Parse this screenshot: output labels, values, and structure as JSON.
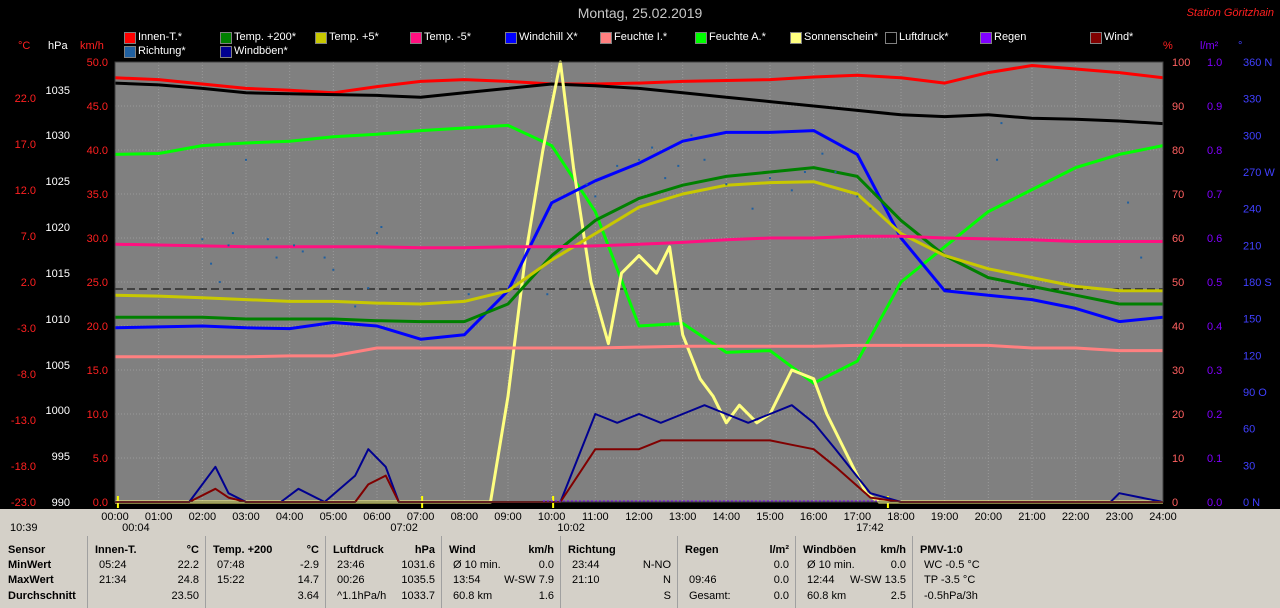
{
  "title": "Montag, 25.02.2019",
  "station": "Station Göritzhain",
  "legend": [
    {
      "label": "Innen-T.*",
      "color": "#ff0000"
    },
    {
      "label": "Temp. +200*",
      "color": "#008000"
    },
    {
      "label": "Temp. +5*",
      "color": "#c8c800"
    },
    {
      "label": "Temp. -5*",
      "color": "#ff1080"
    },
    {
      "label": "Windchill X*",
      "color": "#0000ff"
    },
    {
      "label": "Feuchte I.*",
      "color": "#ff8080"
    },
    {
      "label": "Feuchte A.*",
      "color": "#00ff00"
    },
    {
      "label": "Sonnenschein*",
      "color": "#ffff80"
    },
    {
      "label": "Luftdruck*",
      "color": "#000000"
    },
    {
      "label": "Regen",
      "color": "#8000ff"
    },
    {
      "label": "Wind*",
      "color": "#800000"
    },
    {
      "label": "Richtung*",
      "color": "#2060a0"
    },
    {
      "label": "Windböen*",
      "color": "#000090"
    }
  ],
  "axes": {
    "units": {
      "temp": "°C",
      "hpa": "hPa",
      "kmh": "km/h",
      "pct": "%",
      "rain": "l/m²",
      "dir": "°"
    },
    "temp_ticks": [
      "22.0",
      "17.0",
      "12.0",
      "7.0",
      "2.0",
      "-3.0",
      "-8.0",
      "-13.0",
      "-18.0",
      "-23.0"
    ],
    "hpa_ticks": [
      "1035",
      "1030",
      "1025",
      "1020",
      "1015",
      "1010",
      "1005",
      "1000",
      "995",
      "990"
    ],
    "kmh_ticks": [
      "50.0",
      "45.0",
      "40.0",
      "35.0",
      "30.0",
      "25.0",
      "20.0",
      "15.0",
      "10.0",
      "5.0",
      "0.0"
    ],
    "pct_ticks": [
      "100",
      "90",
      "80",
      "70",
      "60",
      "50",
      "40",
      "30",
      "20",
      "10",
      "0"
    ],
    "rain_ticks": [
      "1.0",
      "0.9",
      "0.8",
      "0.7",
      "0.6",
      "0.5",
      "0.4",
      "0.3",
      "0.2",
      "0.1",
      "0.0"
    ],
    "dir_ticks": [
      "360 N",
      "330",
      "300",
      "270 W",
      "240",
      "210",
      "180 S",
      "150",
      "120",
      "90 O",
      "60",
      "30",
      "0 N"
    ],
    "time_ticks": [
      "00:00",
      "01:00",
      "02:00",
      "03:00",
      "04:00",
      "05:00",
      "06:00",
      "07:00",
      "08:00",
      "09:00",
      "10:00",
      "11:00",
      "12:00",
      "13:00",
      "14:00",
      "15:00",
      "16:00",
      "17:00",
      "18:00",
      "19:00",
      "20:00",
      "21:00",
      "22:00",
      "23:00",
      "24:00"
    ]
  },
  "markers": {
    "now": "10:39",
    "moonrise": "00:04",
    "sunrise": "07:02",
    "moonset": "10:02",
    "sunset": "17:42"
  },
  "chart_data": {
    "type": "line",
    "title": "Montag, 25.02.2019",
    "x_unit": "hours",
    "xlim": [
      0,
      24
    ],
    "ylim_kmh": [
      0,
      50
    ],
    "series": [
      {
        "name": "Innen-T.*",
        "axis": "kmh",
        "color": "#ff0000",
        "x": [
          0,
          1,
          2,
          3,
          4,
          5,
          6,
          7,
          8,
          9,
          10,
          11,
          12,
          13,
          14,
          15,
          16,
          17,
          18,
          19,
          20,
          21,
          22,
          23,
          24
        ],
        "y": [
          48.2,
          48.0,
          47.5,
          47.0,
          46.8,
          46.5,
          47.2,
          47.8,
          48.0,
          47.8,
          47.5,
          47.5,
          47.6,
          47.8,
          47.9,
          48.0,
          48.3,
          48.5,
          48.2,
          47.6,
          48.8,
          49.6,
          49.2,
          48.8,
          48.2
        ]
      },
      {
        "name": "Luftdruck*",
        "axis": "kmh",
        "color": "#000000",
        "x": [
          0,
          1,
          2,
          3,
          4,
          5,
          6,
          7,
          8,
          9,
          10,
          11,
          12,
          13,
          14,
          15,
          16,
          17,
          18,
          19,
          20,
          21,
          22,
          23,
          24
        ],
        "y": [
          47.6,
          47.4,
          47.0,
          46.5,
          46.4,
          46.3,
          46.2,
          46.0,
          46.5,
          47.0,
          47.5,
          47.3,
          47.0,
          46.5,
          46.0,
          45.5,
          45.0,
          44.5,
          44.0,
          43.8,
          44.0,
          43.6,
          43.5,
          43.3,
          43.0
        ]
      },
      {
        "name": "Feuchte A.*",
        "axis": "kmh",
        "color": "#00ff00",
        "x": [
          0,
          1,
          2,
          3,
          4,
          5,
          6,
          7,
          8,
          9,
          10,
          11,
          12,
          13,
          14,
          15,
          16,
          17,
          18,
          19,
          20,
          21,
          22,
          23,
          24
        ],
        "y": [
          39.5,
          39.6,
          40.5,
          40.8,
          41.0,
          41.5,
          41.8,
          42.2,
          42.5,
          42.8,
          40.5,
          33.0,
          20.0,
          20.3,
          17.0,
          17.2,
          13.5,
          16.0,
          25.0,
          29.0,
          33.0,
          35.5,
          38.0,
          39.5,
          40.5
        ]
      },
      {
        "name": "Sonnenschein*",
        "axis": "kmh",
        "color": "#ffff80",
        "x": [
          0,
          8.6,
          9.0,
          9.4,
          9.8,
          10.2,
          10.5,
          10.9,
          11.3,
          11.6,
          12.0,
          12.4,
          12.7,
          13.0,
          13.4,
          13.7,
          14.0,
          14.3,
          14.7,
          15.0,
          15.5,
          16.0,
          16.3,
          16.8,
          17.2,
          17.5,
          24
        ],
        "y": [
          0,
          0,
          12,
          28,
          40,
          50,
          38,
          25,
          18,
          26,
          28,
          26,
          29,
          19,
          14,
          12,
          9,
          11,
          9,
          10,
          15,
          14,
          10,
          5,
          1,
          0,
          0
        ]
      },
      {
        "name": "Windchill X*",
        "axis": "kmh",
        "color": "#0000ff",
        "x": [
          0,
          1,
          2,
          3,
          4,
          5,
          6,
          7,
          8,
          9,
          10,
          11,
          12,
          13,
          14,
          15,
          16,
          17,
          18,
          19,
          20,
          21,
          22,
          23,
          24
        ],
        "y": [
          19.8,
          19.9,
          20.0,
          19.8,
          19.7,
          20.4,
          20.0,
          18.5,
          19.0,
          24.0,
          34.0,
          36.5,
          38.5,
          41.0,
          42.0,
          42.0,
          42.2,
          39.5,
          30.0,
          24.0,
          23.5,
          23.0,
          22.0,
          20.5,
          21.0
        ]
      },
      {
        "name": "Temp. +200*",
        "axis": "kmh",
        "color": "#008000",
        "x": [
          0,
          1,
          2,
          3,
          4,
          5,
          6,
          7,
          8,
          9,
          10,
          11,
          12,
          13,
          14,
          15,
          16,
          17,
          18,
          19,
          20,
          21,
          22,
          23,
          24
        ],
        "y": [
          21.0,
          21.0,
          21.0,
          20.8,
          20.8,
          20.8,
          20.6,
          20.5,
          20.5,
          22.5,
          28.0,
          32.0,
          34.5,
          36.0,
          37.0,
          37.5,
          38.0,
          37.0,
          32.0,
          28.0,
          25.5,
          24.5,
          23.5,
          22.5,
          22.5
        ]
      },
      {
        "name": "Temp. +5*",
        "axis": "kmh",
        "color": "#c8c800",
        "x": [
          0,
          1,
          2,
          3,
          4,
          5,
          6,
          7,
          8,
          9,
          10,
          11,
          12,
          13,
          14,
          15,
          16,
          17,
          18,
          19,
          20,
          21,
          22,
          23,
          24
        ],
        "y": [
          23.5,
          23.4,
          23.2,
          23.0,
          22.8,
          22.8,
          22.6,
          22.5,
          22.8,
          24.0,
          27.5,
          30.5,
          33.5,
          35.0,
          36.0,
          36.3,
          36.4,
          35.0,
          30.5,
          28.0,
          26.5,
          25.5,
          24.5,
          24.0,
          24.0
        ]
      },
      {
        "name": "Temp. -5*",
        "axis": "kmh",
        "color": "#ff1080",
        "x": [
          0,
          1,
          2,
          3,
          4,
          5,
          6,
          7,
          8,
          9,
          10,
          11,
          12,
          13,
          14,
          15,
          16,
          17,
          18,
          19,
          20,
          21,
          22,
          23,
          24
        ],
        "y": [
          29.3,
          29.2,
          29.1,
          29.0,
          29.0,
          29.0,
          29.0,
          28.9,
          28.9,
          29.0,
          29.0,
          29.1,
          29.3,
          29.5,
          29.8,
          30.0,
          30.0,
          30.2,
          30.2,
          30.0,
          29.9,
          29.8,
          29.6,
          29.6,
          29.6
        ]
      },
      {
        "name": "Feuchte I.*",
        "axis": "kmh",
        "color": "#ff8080",
        "x": [
          0,
          1,
          2,
          3,
          4,
          5,
          6,
          7,
          8,
          9,
          10,
          11,
          12,
          13,
          14,
          15,
          16,
          17,
          18,
          19,
          20,
          21,
          22,
          23,
          24
        ],
        "y": [
          16.5,
          16.5,
          16.5,
          16.5,
          16.6,
          16.6,
          17.5,
          17.5,
          17.5,
          17.5,
          17.5,
          17.5,
          17.6,
          17.7,
          17.7,
          17.7,
          17.7,
          17.8,
          17.8,
          17.8,
          17.8,
          17.5,
          17.5,
          17.2,
          17.2
        ]
      },
      {
        "name": "Windböen*",
        "axis": "kmh",
        "color": "#000090",
        "x": [
          0,
          1.7,
          2.3,
          2.6,
          3,
          3.8,
          4.2,
          4.8,
          5.5,
          5.8,
          6.2,
          6.5,
          7,
          10.2,
          10.6,
          11,
          11.5,
          12,
          12.5,
          13,
          13.5,
          14,
          14.5,
          15,
          15.5,
          16,
          16.5,
          17.3,
          18,
          20,
          21,
          22.8,
          23,
          24
        ],
        "y": [
          0,
          0,
          4,
          1,
          0,
          0,
          1.5,
          0,
          3,
          6,
          4,
          0,
          0,
          0,
          5,
          10,
          9,
          10,
          9,
          10,
          11,
          10,
          9,
          10,
          11,
          9,
          6,
          1,
          0,
          0,
          0,
          0,
          1,
          0
        ]
      },
      {
        "name": "Wind*",
        "axis": "kmh",
        "color": "#800000",
        "x": [
          0,
          1.7,
          2.3,
          2.6,
          3,
          5.5,
          5.8,
          6.2,
          6.5,
          7,
          10.2,
          10.6,
          11,
          11.5,
          12,
          12.5,
          13,
          13.5,
          14,
          14.5,
          15,
          15.5,
          16,
          16.5,
          17.3,
          18,
          24
        ],
        "y": [
          0,
          0,
          1.5,
          0.5,
          0,
          0,
          2,
          3,
          0,
          0,
          0,
          3,
          6,
          6,
          6,
          7,
          7,
          7,
          7,
          7,
          7,
          6.5,
          6,
          4,
          0.5,
          0,
          0
        ]
      },
      {
        "name": "Richtung*",
        "axis": "dir",
        "color": "#2060a0",
        "type": "scatter",
        "x": [
          2.0,
          2.2,
          2.4,
          2.6,
          2.7,
          3.0,
          3.5,
          3.7,
          4.1,
          4.3,
          4.8,
          5.0,
          5.5,
          5.8,
          6.0,
          6.1,
          8.1,
          9.9,
          10.8,
          11.0,
          11.5,
          12.0,
          12.3,
          12.6,
          12.9,
          13.2,
          13.5,
          14.0,
          14.6,
          15.0,
          15.5,
          15.8,
          16.2,
          16.5,
          17.0,
          17.3,
          20.2,
          20.3,
          23.2,
          23.5
        ],
        "y": [
          215,
          195,
          180,
          210,
          220,
          280,
          215,
          200,
          210,
          205,
          200,
          190,
          160,
          175,
          220,
          225,
          170,
          170,
          260,
          250,
          275,
          280,
          290,
          265,
          275,
          300,
          280,
          260,
          240,
          265,
          255,
          270,
          285,
          270,
          250,
          240,
          280,
          310,
          245,
          200
        ]
      }
    ]
  },
  "stats": {
    "sensor": {
      "header": "Sensor",
      "rows": [
        "MinWert",
        "MaxWert",
        "Durchschnitt"
      ]
    },
    "innen": {
      "header": "Innen-T.",
      "unit": "°C",
      "rows": [
        [
          "05:24",
          "22.2"
        ],
        [
          "21:34",
          "24.8"
        ],
        [
          "",
          "23.50"
        ]
      ]
    },
    "temp200": {
      "header": "Temp. +200",
      "unit": "°C",
      "rows": [
        [
          "07:48",
          "-2.9"
        ],
        [
          "15:22",
          "14.7"
        ],
        [
          "",
          "3.64"
        ]
      ]
    },
    "luftdruck": {
      "header": "Luftdruck",
      "unit": "hPa",
      "rows": [
        [
          "23:46",
          "1031.6"
        ],
        [
          "00:26",
          "1035.5"
        ],
        [
          "^1.1hPa/h",
          "1033.7"
        ]
      ]
    },
    "wind": {
      "header": "Wind",
      "unit": "km/h",
      "rows": [
        [
          "Ø 10 min.",
          "0.0"
        ],
        [
          "13:54",
          "W-SW 7.9"
        ],
        [
          "60.8 km",
          "1.6"
        ]
      ]
    },
    "richtung": {
      "header": "Richtung",
      "unit": "",
      "rows": [
        [
          "23:44",
          "N-NO"
        ],
        [
          "21:10",
          "N"
        ],
        [
          "",
          "S"
        ]
      ]
    },
    "regen": {
      "header": "Regen",
      "unit": "l/m²",
      "rows": [
        [
          "",
          "0.0"
        ],
        [
          "09:46",
          "0.0"
        ],
        [
          "Gesamt:",
          "0.0"
        ]
      ]
    },
    "boeen": {
      "header": "Windböen",
      "unit": "km/h",
      "rows": [
        [
          "Ø 10 min.",
          "0.0"
        ],
        [
          "12:44",
          "W-SW 13.5"
        ],
        [
          "60.8 km",
          "2.5"
        ]
      ]
    },
    "pmv": {
      "header": "PMV-1:0",
      "unit": "",
      "rows": [
        [
          "WC -0.5 °C",
          ""
        ],
        [
          "TP -3.5 °C",
          ""
        ],
        [
          "-0.5hPa/3h",
          ""
        ]
      ]
    }
  }
}
